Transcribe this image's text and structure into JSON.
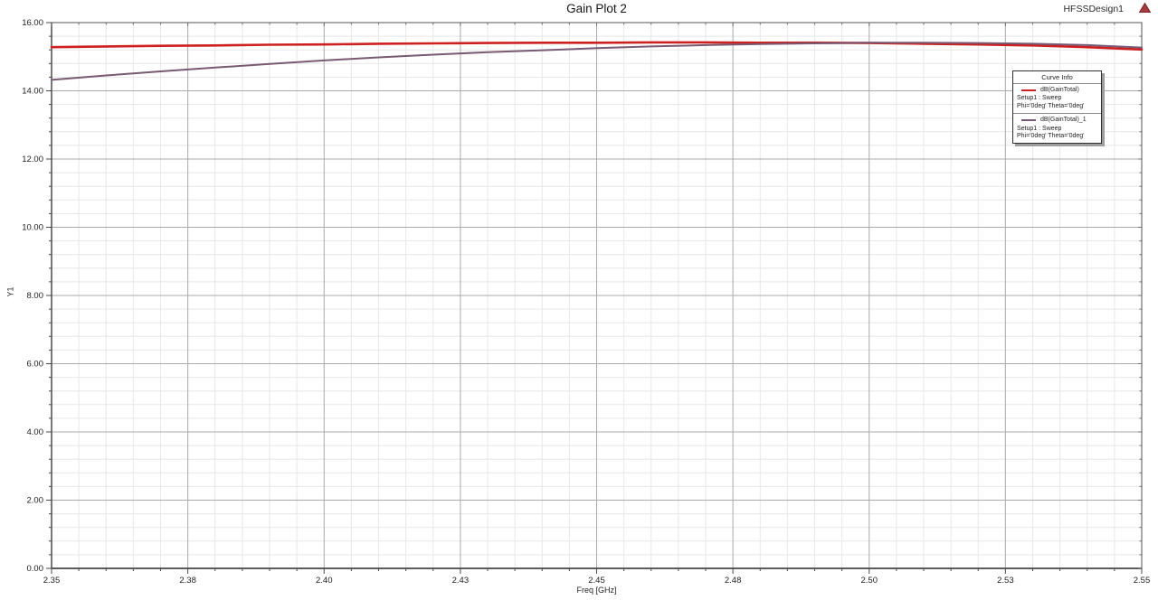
{
  "header": {
    "design_label": "HFSSDesign1",
    "logo_icon": "ansys-red-triangle"
  },
  "colors": {
    "major_grid": "#aaaaaa",
    "minor_grid": "#e7e7e7",
    "border": "#707070",
    "axis": "#4a4a4a",
    "tick_text": "#1c1c1c",
    "logo_red": "#a63939"
  },
  "chart_data": {
    "type": "line",
    "title": "Gain Plot 2",
    "xlabel": "Freq [GHz]",
    "ylabel": "Y1",
    "xlim": [
      2.35,
      2.55
    ],
    "ylim": [
      0,
      16
    ],
    "grid": true,
    "x_minor_step": 0.005,
    "y_minor_step": 0.4,
    "x_ticks": [
      {
        "v": 2.35,
        "label": "2.35"
      },
      {
        "v": 2.375,
        "label": "2.38"
      },
      {
        "v": 2.4,
        "label": "2.40"
      },
      {
        "v": 2.425,
        "label": "2.43"
      },
      {
        "v": 2.45,
        "label": "2.45"
      },
      {
        "v": 2.475,
        "label": "2.48"
      },
      {
        "v": 2.5,
        "label": "2.50"
      },
      {
        "v": 2.525,
        "label": "2.53"
      },
      {
        "v": 2.55,
        "label": "2.55"
      }
    ],
    "y_ticks": [
      {
        "v": 0,
        "label": "0.00"
      },
      {
        "v": 2,
        "label": "2.00"
      },
      {
        "v": 4,
        "label": "4.00"
      },
      {
        "v": 6,
        "label": "6.00"
      },
      {
        "v": 8,
        "label": "8.00"
      },
      {
        "v": 10,
        "label": "10.00"
      },
      {
        "v": 12,
        "label": "12.00"
      },
      {
        "v": 14,
        "label": "14.00"
      },
      {
        "v": 16,
        "label": "16.00"
      }
    ],
    "x": [
      2.35,
      2.36,
      2.37,
      2.38,
      2.39,
      2.4,
      2.41,
      2.42,
      2.43,
      2.44,
      2.45,
      2.46,
      2.47,
      2.48,
      2.49,
      2.5,
      2.51,
      2.52,
      2.53,
      2.54,
      2.55
    ],
    "series": [
      {
        "name": "dB(GainTotal)",
        "setup": "Setup1 : Sweep",
        "params": "Phi='0deg' Theta='0deg'",
        "color": "#cf2020",
        "width": 2.6,
        "values": [
          15.28,
          15.3,
          15.32,
          15.33,
          15.35,
          15.36,
          15.38,
          15.39,
          15.4,
          15.41,
          15.41,
          15.42,
          15.42,
          15.41,
          15.41,
          15.4,
          15.38,
          15.36,
          15.33,
          15.28,
          15.21
        ]
      },
      {
        "name": "dB(GainTotal)_1",
        "setup": "Setup1 : Sweep",
        "params": "Phi='0deg' Theta='0deg'",
        "color": "#785a74",
        "width": 2.0,
        "values": [
          14.32,
          14.45,
          14.57,
          14.68,
          14.79,
          14.89,
          14.98,
          15.06,
          15.13,
          15.19,
          15.25,
          15.3,
          15.34,
          15.37,
          15.39,
          15.41,
          15.41,
          15.4,
          15.38,
          15.34,
          15.27
        ]
      }
    ],
    "legend": {
      "title": "Curve Info",
      "position": "top-right"
    }
  }
}
